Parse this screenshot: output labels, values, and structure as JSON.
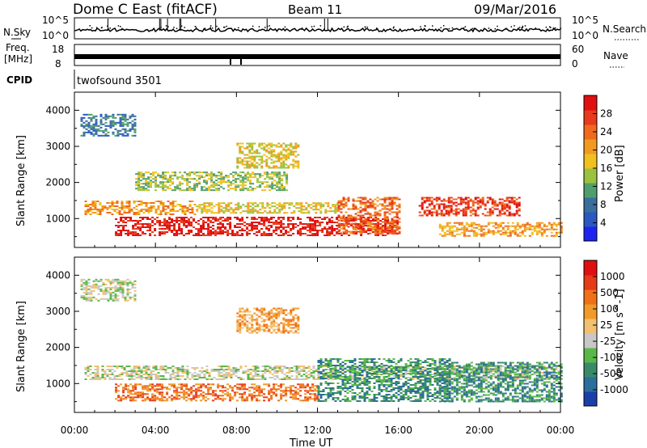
{
  "header": {
    "station": "Dome C East (fitACF)",
    "beam": "Beam 11",
    "date": "09/Mar/2016"
  },
  "status_panels": {
    "nsky_label": "N.Sky",
    "freq_label_line1": "Freq.",
    "freq_label_line2": "[MHz]",
    "cpid_label": "CPID",
    "nsearch_label": "N.Search",
    "nave_label": "Nave",
    "noise_ticks_left": [
      "10^5",
      "10^0"
    ],
    "noise_ticks_right": [
      "10^5",
      "10^0"
    ],
    "freq_ticks_left": [
      "18",
      "8"
    ],
    "nave_ticks_right": [
      "60",
      "0"
    ],
    "cpid_value": "twofsound 3501"
  },
  "chart_data": [
    {
      "type": "heatmap",
      "title": "",
      "ylabel": "Slant Range [km]",
      "xlabel": "",
      "x_ticks": [
        "00:00",
        "04:00",
        "08:00",
        "12:00",
        "16:00",
        "20:00",
        "00:00"
      ],
      "y_ticks": [
        "1000",
        "2000",
        "3000",
        "4000"
      ],
      "ylim": [
        200,
        4500
      ],
      "xlim_hours": [
        0,
        24
      ],
      "colorbar": {
        "label": "Power [dB]",
        "ticks": [
          "4",
          "8",
          "12",
          "16",
          "20",
          "24",
          "28"
        ],
        "colors": [
          "#1e24f0",
          "#2a58c0",
          "#3b6e9a",
          "#4f9e6e",
          "#9ac23c",
          "#f0c01e",
          "#f29a20",
          "#f06a1e",
          "#e83a1c",
          "#e01010"
        ]
      },
      "regions": [
        {
          "t": [
            2.0,
            16.0
          ],
          "r": [
            550,
            1050
          ],
          "level": 9
        },
        {
          "t": [
            0.5,
            6.0
          ],
          "r": [
            1100,
            1500
          ],
          "level": 6
        },
        {
          "t": [
            6.0,
            13.0
          ],
          "r": [
            1150,
            1450
          ],
          "level": 5
        },
        {
          "t": [
            17.0,
            22.0
          ],
          "r": [
            1100,
            1600
          ],
          "level": 8
        },
        {
          "t": [
            18.0,
            24.0
          ],
          "r": [
            500,
            900
          ],
          "level": 6
        },
        {
          "t": [
            0.3,
            3.0
          ],
          "r": [
            3300,
            3900
          ],
          "level": 2
        },
        {
          "t": [
            3.0,
            10.5
          ],
          "r": [
            1800,
            2300
          ],
          "level": 4
        },
        {
          "t": [
            8.0,
            11.0
          ],
          "r": [
            2400,
            3100
          ],
          "level": 5
        },
        {
          "t": [
            13.0,
            16.0
          ],
          "r": [
            600,
            1600
          ],
          "level": 7
        }
      ]
    },
    {
      "type": "heatmap",
      "title": "",
      "ylabel": "Slant Range [km]",
      "xlabel": "Time UT",
      "x_ticks": [
        "00:00",
        "04:00",
        "08:00",
        "12:00",
        "16:00",
        "20:00",
        "00:00"
      ],
      "y_ticks": [
        "1000",
        "2000",
        "3000",
        "4000"
      ],
      "ylim": [
        200,
        4500
      ],
      "xlim_hours": [
        0,
        24
      ],
      "colorbar": {
        "label": "Velocity [m s^-1]",
        "ticks": [
          "1000",
          "500",
          "100",
          "25",
          "-25",
          "-100",
          "-500",
          "-1000"
        ],
        "colors": [
          "#1b3fa8",
          "#2c6f9a",
          "#3a8a6a",
          "#5ab84a",
          "#c8c8c8",
          "#f2c070",
          "#f09a2a",
          "#f07018",
          "#e63a18",
          "#e01010"
        ]
      },
      "regions": [
        {
          "t": [
            2.0,
            12.0
          ],
          "r": [
            550,
            1000
          ],
          "level": 7
        },
        {
          "t": [
            0.5,
            24.0
          ],
          "r": [
            1100,
            1500
          ],
          "level": 4
        },
        {
          "t": [
            12.0,
            18.5
          ],
          "r": [
            500,
            1700
          ],
          "level": 2
        },
        {
          "t": [
            18.0,
            24.0
          ],
          "r": [
            500,
            1600
          ],
          "level": 2
        },
        {
          "t": [
            0.3,
            3.0
          ],
          "r": [
            3300,
            3900
          ],
          "level": 4
        },
        {
          "t": [
            8.0,
            11.0
          ],
          "r": [
            2400,
            3100
          ],
          "level": 6
        }
      ]
    }
  ]
}
